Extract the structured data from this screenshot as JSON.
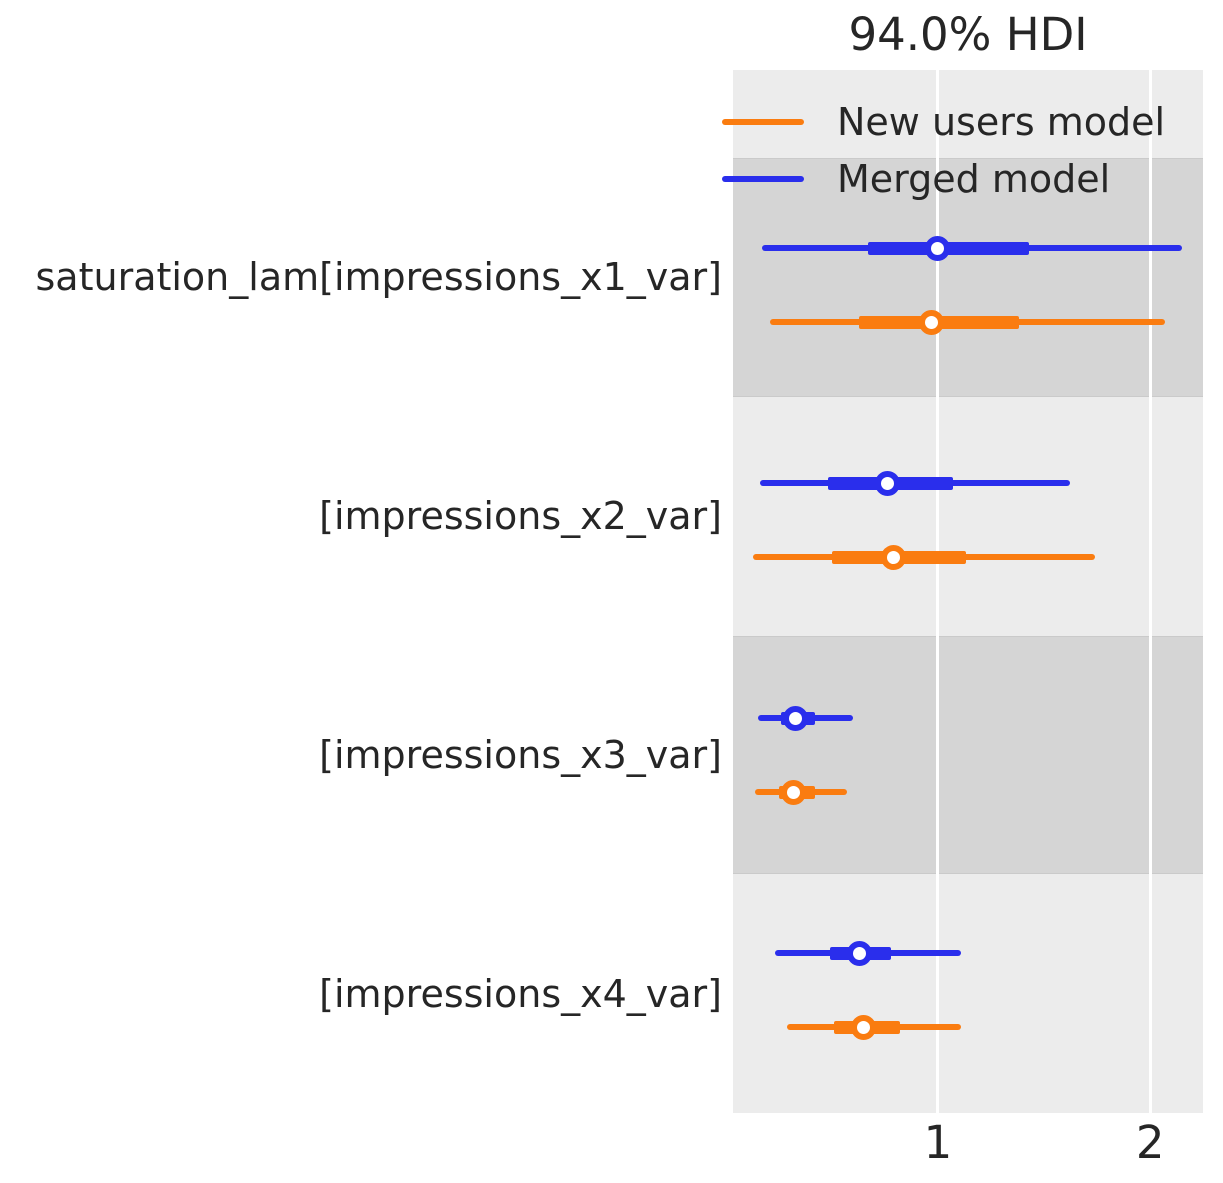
{
  "chart_data": {
    "type": "forest",
    "title": "94.0% HDI",
    "hdi_prob": 0.94,
    "xlabel": "",
    "xticks": [
      1,
      2
    ],
    "xtick_labels": [
      "1",
      "2"
    ],
    "xlim": [
      0.034,
      2.249
    ],
    "grid": "vertical-white-gridlines",
    "legend_position": "upper-left-inside",
    "band_colors": {
      "light": "#ececec",
      "dark": "#d5d5d5"
    },
    "gridline_color": "#ffffff",
    "text_color": "#262626",
    "legend": [
      {
        "label": "New users model",
        "color": "#fa7c10"
      },
      {
        "label": "Merged model",
        "color": "#2a2eec"
      }
    ],
    "row_order_top_to_bottom": [
      "Merged model",
      "New users model"
    ],
    "parameters": [
      {
        "label": "saturation_lam[impressions_x1_var]",
        "band": "dark",
        "estimates": [
          {
            "model": "Merged model",
            "color": "#2a2eec",
            "hdi_94": [
              0.17,
              2.15
            ],
            "quartile_range": [
              0.67,
              1.43
            ],
            "median": 1.0
          },
          {
            "model": "New users model",
            "color": "#fa7c10",
            "hdi_94": [
              0.21,
              2.07
            ],
            "quartile_range": [
              0.63,
              1.38
            ],
            "median": 0.97
          }
        ]
      },
      {
        "label": "[impressions_x2_var]",
        "band": "light",
        "estimates": [
          {
            "model": "Merged model",
            "color": "#2a2eec",
            "hdi_94": [
              0.16,
              1.62
            ],
            "quartile_range": [
              0.48,
              1.07
            ],
            "median": 0.76
          },
          {
            "model": "New users model",
            "color": "#fa7c10",
            "hdi_94": [
              0.13,
              1.74
            ],
            "quartile_range": [
              0.5,
              1.13
            ],
            "median": 0.79
          }
        ]
      },
      {
        "label": "[impressions_x3_var]",
        "band": "dark",
        "estimates": [
          {
            "model": "Merged model",
            "color": "#2a2eec",
            "hdi_94": [
              0.15,
              0.6
            ],
            "quartile_range": [
              0.26,
              0.42
            ],
            "median": 0.33
          },
          {
            "model": "New users model",
            "color": "#fa7c10",
            "hdi_94": [
              0.14,
              0.57
            ],
            "quartile_range": [
              0.25,
              0.42
            ],
            "median": 0.32
          }
        ]
      },
      {
        "label": "[impressions_x4_var]",
        "band": "light",
        "estimates": [
          {
            "model": "Merged model",
            "color": "#2a2eec",
            "hdi_94": [
              0.23,
              1.11
            ],
            "quartile_range": [
              0.49,
              0.78
            ],
            "median": 0.63
          },
          {
            "model": "New users model",
            "color": "#fa7c10",
            "hdi_94": [
              0.29,
              1.11
            ],
            "quartile_range": [
              0.51,
              0.82
            ],
            "median": 0.65
          }
        ]
      }
    ]
  }
}
